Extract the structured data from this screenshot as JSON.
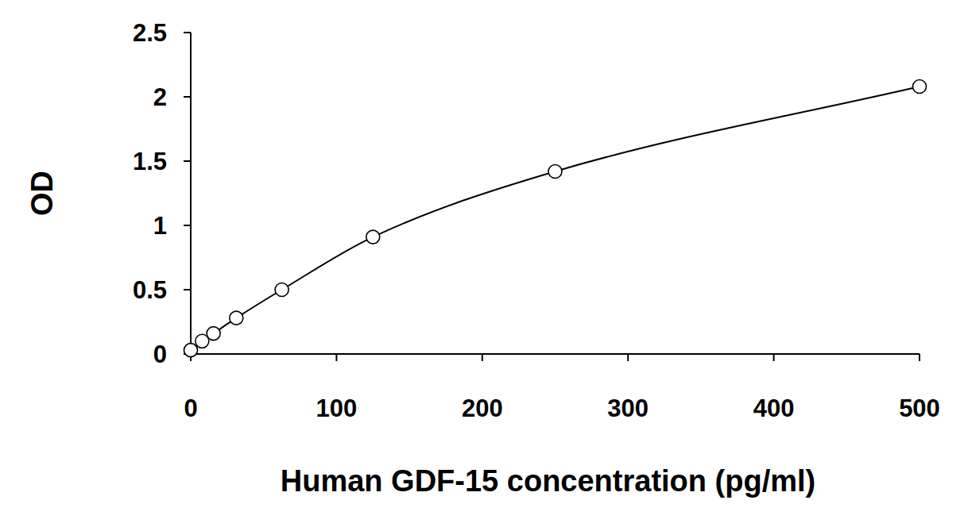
{
  "chart_data": {
    "type": "line",
    "x_label": "Human GDF-15 concentration (pg/ml)",
    "y_label": "OD",
    "x": [
      0,
      7.8,
      15.6,
      31.25,
      62.5,
      125,
      250,
      500
    ],
    "values": [
      0.03,
      0.1,
      0.16,
      0.28,
      0.5,
      0.91,
      1.42,
      2.08
    ],
    "color": "#000000",
    "marker": "circle",
    "line_style": "solid",
    "xlim": [
      0,
      500
    ],
    "xticks": [
      0,
      100,
      200,
      300,
      400,
      500
    ],
    "ylim": [
      0,
      2.5
    ],
    "yticks": [
      0,
      0.5,
      1,
      1.5,
      2,
      2.5
    ],
    "grid": false
  }
}
